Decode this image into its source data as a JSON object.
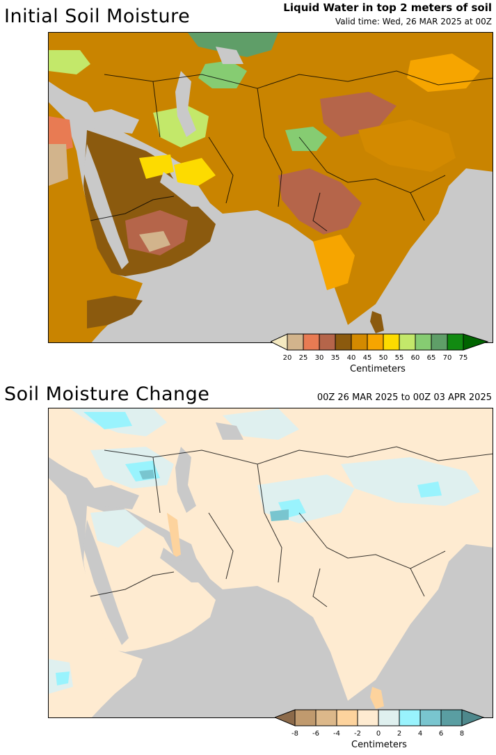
{
  "top_panel": {
    "title": "Initial Soil Moisture",
    "subtitle": "Liquid Water in top 2 meters of soil",
    "valid_time": "Valid time: Wed, 26 MAR 2025 at 00Z",
    "colorbar": {
      "ticks": [
        "20",
        "25",
        "30",
        "35",
        "40",
        "45",
        "50",
        "55",
        "60",
        "65",
        "70",
        "75"
      ],
      "colors": [
        "#f4e9c1",
        "#d2b48c",
        "#e87b53",
        "#b5654a",
        "#8b5a0e",
        "#d38a00",
        "#f6a500",
        "#fddb00",
        "#c3e86a",
        "#86cc72",
        "#5f9e68",
        "#118a11",
        "#006400"
      ],
      "units": "Centimeters"
    }
  },
  "bottom_panel": {
    "title": "Soil Moisture Change",
    "period": "00Z 26 MAR 2025 to 00Z 03 APR 2025",
    "colorbar": {
      "ticks": [
        "-8",
        "-6",
        "-4",
        "-2",
        "0",
        "2",
        "4",
        "6",
        "8"
      ],
      "colors": [
        "#8c6a4a",
        "#c09a6e",
        "#dcb88a",
        "#fdd39d",
        "#feebd1",
        "#dff0ef",
        "#99f3fd",
        "#79c5cf",
        "#5a9ea2",
        "#4e888c"
      ],
      "units": "Centimeters"
    }
  },
  "colors": {
    "ocean": "#c9c9c9",
    "land_change": "#feebd1"
  }
}
